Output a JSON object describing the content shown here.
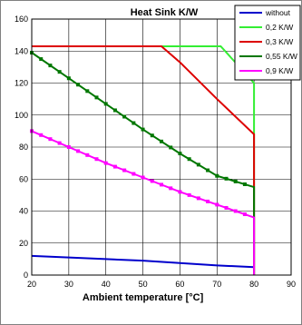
{
  "chart_data": {
    "type": "line",
    "title": "Heat Sink K/W",
    "xlabel": "Ambient temperature [°C]",
    "ylabel": "",
    "xlim": [
      20,
      90
    ],
    "ylim": [
      0,
      160
    ],
    "x_ticks": [
      "20",
      "30",
      "40",
      "50",
      "60",
      "70",
      "80",
      "90"
    ],
    "y_ticks": [
      "0",
      "20",
      "40",
      "60",
      "80",
      "100",
      "120",
      "140",
      "160"
    ],
    "grid": true,
    "legend_position": "top-right",
    "series": [
      {
        "name": "without",
        "color": "#0000cc",
        "marker": "none",
        "x": [
          20,
          30,
          40,
          50,
          60,
          70,
          80
        ],
        "y": [
          12,
          11,
          10,
          9,
          7.5,
          6,
          5
        ]
      },
      {
        "name": "0,2 K/W",
        "color": "#33ee33",
        "marker": "none",
        "x": [
          20,
          71,
          80,
          80
        ],
        "y": [
          143,
          143,
          120,
          0
        ]
      },
      {
        "name": "0,3 K/W",
        "color": "#dd0000",
        "marker": "none",
        "x": [
          20,
          55,
          60,
          70,
          80,
          80
        ],
        "y": [
          143,
          143,
          133,
          110,
          88,
          0
        ]
      },
      {
        "name": "0,55 K/W",
        "color": "#007700",
        "marker": "square",
        "x": [
          20,
          30,
          40,
          50,
          60,
          70,
          80,
          80
        ],
        "y": [
          139,
          123,
          107,
          91,
          76,
          62,
          55,
          0
        ]
      },
      {
        "name": "0,9 K/W",
        "color": "#ff00ff",
        "marker": "square",
        "x": [
          20,
          30,
          40,
          50,
          60,
          70,
          80,
          80
        ],
        "y": [
          90,
          80,
          70,
          61,
          52,
          44,
          36,
          0
        ]
      }
    ]
  }
}
